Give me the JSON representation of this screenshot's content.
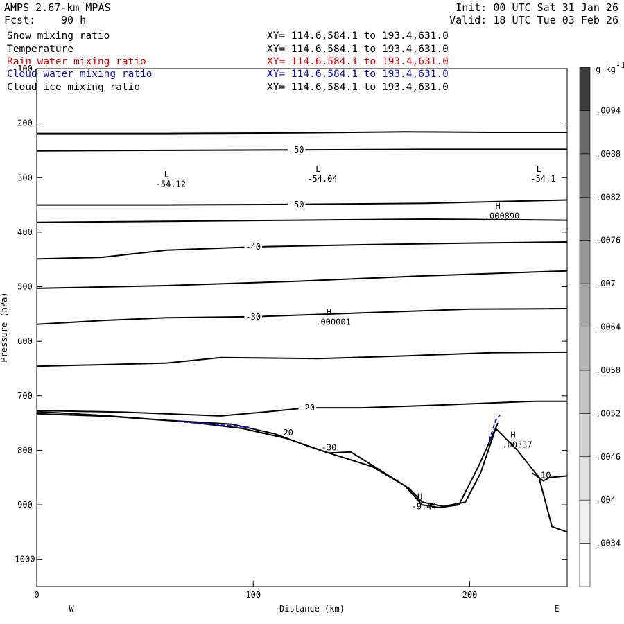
{
  "header": {
    "model": "AMPS 2.67-km MPAS",
    "fcst_label": "Fcst:",
    "fcst_value": "90 h",
    "init": "Init: 00 UTC Sat 31 Jan 26",
    "valid": "Valid: 18 UTC Tue 03 Feb 26"
  },
  "legend": [
    {
      "name": "Snow mixing ratio",
      "xy": "XY= 114.6,584.1 to 193.4,631.0",
      "color": "#000000"
    },
    {
      "name": "Temperature",
      "xy": "XY= 114.6,584.1 to 193.4,631.0",
      "color": "#000000"
    },
    {
      "name": "Rain water mixing ratio",
      "xy": "XY= 114.6,584.1 to 193.4,631.0",
      "color": "#e00000"
    },
    {
      "name": "Cloud water mixing ratio",
      "xy": "XY= 114.6,584.1 to 193.4,631.0",
      "color": "#1010c8"
    },
    {
      "name": "Cloud ice mixing ratio",
      "xy": "XY= 114.6,584.1 to 193.4,631.0",
      "color": "#000000"
    }
  ],
  "chart_data": {
    "type": "cross-section contour",
    "xlabel": "Distance (km)",
    "ylabel": "Pressure (hPa)",
    "xlim": [
      0,
      245
    ],
    "ylim": [
      1050,
      100
    ],
    "x_ticks": [
      0,
      100,
      200
    ],
    "y_ticks": [
      100,
      200,
      300,
      400,
      500,
      600,
      700,
      800,
      900,
      1000
    ],
    "x_end_labels": {
      "left": "W",
      "right": "E"
    },
    "colorbar": {
      "units": "g kg",
      "units_exp": "-1",
      "levels": [
        ".0034",
        ".004",
        ".0046",
        ".0052",
        ".0058",
        ".0064",
        ".007",
        ".0076",
        ".0082",
        ".0088",
        ".0094"
      ],
      "colors": [
        "#ffffff",
        "#f0f0f0",
        "#e1e1e1",
        "#d2d2d2",
        "#c3c3c3",
        "#b4b4b4",
        "#a5a5a5",
        "#969696",
        "#878787",
        "#787878",
        "#696969",
        "#3c3c3c"
      ]
    },
    "temperature_contours": [
      {
        "label": "",
        "points": [
          [
            0,
            219
          ],
          [
            60,
            219
          ],
          [
            120,
            218
          ],
          [
            170,
            216
          ],
          [
            210,
            217
          ],
          [
            245,
            217
          ]
        ]
      },
      {
        "label": "-50",
        "points": [
          [
            0,
            251
          ],
          [
            60,
            250
          ],
          [
            120,
            249
          ],
          [
            180,
            248
          ],
          [
            245,
            248
          ]
        ]
      },
      {
        "label": "-50",
        "points": [
          [
            0,
            350
          ],
          [
            60,
            350
          ],
          [
            120,
            349
          ],
          [
            180,
            347
          ],
          [
            245,
            341
          ]
        ]
      },
      {
        "label": "",
        "points": [
          [
            0,
            382
          ],
          [
            60,
            380
          ],
          [
            120,
            378
          ],
          [
            180,
            376
          ],
          [
            245,
            378
          ]
        ]
      },
      {
        "label": "-40",
        "points": [
          [
            0,
            449
          ],
          [
            30,
            446
          ],
          [
            60,
            433
          ],
          [
            100,
            427
          ],
          [
            150,
            423
          ],
          [
            200,
            420
          ],
          [
            245,
            418
          ]
        ]
      },
      {
        "label": "",
        "points": [
          [
            0,
            503
          ],
          [
            60,
            498
          ],
          [
            120,
            490
          ],
          [
            180,
            480
          ],
          [
            245,
            471
          ]
        ]
      },
      {
        "label": "-30",
        "points": [
          [
            0,
            569
          ],
          [
            30,
            562
          ],
          [
            60,
            557
          ],
          [
            100,
            555
          ],
          [
            150,
            548
          ],
          [
            200,
            541
          ],
          [
            245,
            540
          ]
        ]
      },
      {
        "label": "",
        "points": [
          [
            0,
            646
          ],
          [
            60,
            640
          ],
          [
            85,
            630
          ],
          [
            130,
            632
          ],
          [
            170,
            627
          ],
          [
            210,
            621
          ],
          [
            245,
            620
          ]
        ]
      },
      {
        "label": "-20",
        "points": [
          [
            0,
            727
          ],
          [
            40,
            730
          ],
          [
            85,
            737
          ],
          [
            110,
            728
          ],
          [
            125,
            722
          ],
          [
            150,
            722
          ],
          [
            180,
            718
          ],
          [
            230,
            710
          ],
          [
            245,
            710
          ]
        ]
      }
    ],
    "surface_contours": [
      {
        "label": "-30",
        "points": [
          [
            0,
            729
          ],
          [
            30,
            736
          ],
          [
            60,
            745
          ],
          [
            90,
            752
          ],
          [
            110,
            770
          ],
          [
            125,
            792
          ],
          [
            135,
            805
          ],
          [
            145,
            803
          ],
          [
            160,
            840
          ],
          [
            172,
            870
          ],
          [
            178,
            895
          ],
          [
            188,
            903
          ],
          [
            198,
            895
          ],
          [
            205,
            842
          ],
          [
            212,
            760
          ],
          [
            222,
            800
          ],
          [
            232,
            850
          ],
          [
            238,
            940
          ],
          [
            245,
            950
          ]
        ]
      },
      {
        "label": "-20",
        "points": [
          [
            0,
            733
          ],
          [
            35,
            738
          ],
          [
            70,
            748
          ],
          [
            95,
            760
          ],
          [
            115,
            778
          ],
          [
            135,
            805
          ],
          [
            155,
            830
          ],
          [
            170,
            865
          ],
          [
            178,
            900
          ],
          [
            186,
            905
          ],
          [
            195,
            900
          ],
          [
            204,
            830
          ],
          [
            213,
            750
          ]
        ]
      },
      {
        "label": "-10",
        "points": [
          [
            229,
            842
          ],
          [
            234,
            856
          ],
          [
            237,
            850
          ],
          [
            245,
            847
          ]
        ]
      }
    ],
    "cloud_water_contours": [
      {
        "points": [
          [
            65,
            747
          ],
          [
            80,
            752
          ],
          [
            98,
            758
          ]
        ]
      },
      {
        "points": [
          [
            209,
            782
          ],
          [
            212,
            745
          ],
          [
            214,
            735
          ]
        ]
      }
    ],
    "extrema": [
      {
        "kind": "L",
        "value": "-54.12",
        "x": 60,
        "p": 312
      },
      {
        "kind": "L",
        "value": "-54.04",
        "x": 130,
        "p": 302
      },
      {
        "kind": "L",
        "value": "-54.1",
        "x": 232,
        "p": 302
      },
      {
        "kind": "H",
        "value": ".000890",
        "x": 213,
        "p": 370
      },
      {
        "kind": "H",
        "value": ".000001",
        "x": 135,
        "p": 565
      },
      {
        "kind": "H",
        "value": "-9.44",
        "x": 177,
        "p": 903
      },
      {
        "kind": "H",
        "value": ".00337",
        "x": 220,
        "p": 790
      }
    ]
  }
}
